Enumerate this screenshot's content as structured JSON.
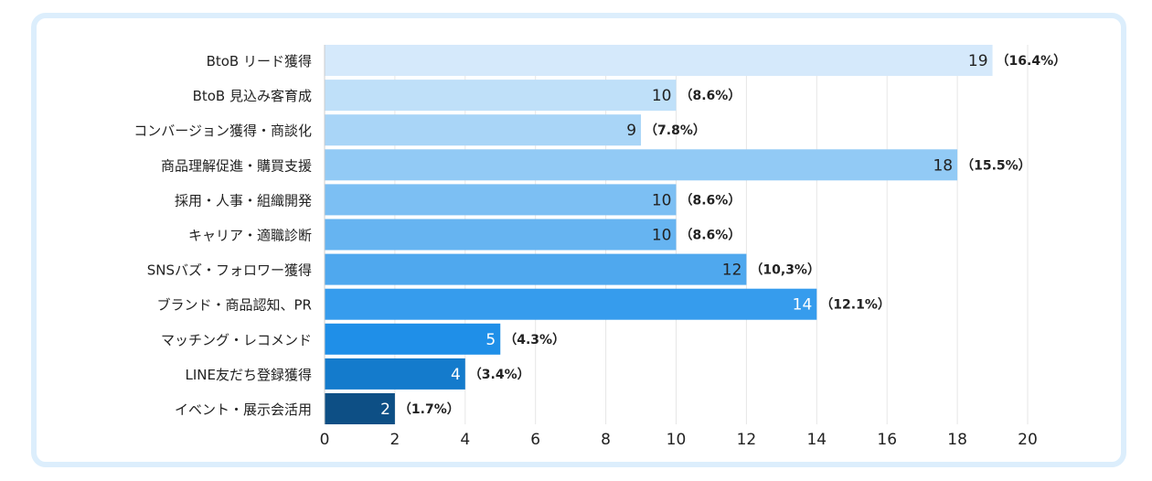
{
  "chart_data": {
    "type": "bar",
    "orientation": "horizontal",
    "categories": [
      "BtoB リード獲得",
      "BtoB 見込み客育成",
      "コンバージョン獲得・商談化",
      "商品理解促進・購買支援",
      "採用・人事・組織開発",
      "キャリア・適職診断",
      "SNSバズ・フォロワー獲得",
      "ブランド・商品認知、PR",
      "マッチング・レコメンド",
      "LINE友だち登録獲得",
      "イベント・展示会活用"
    ],
    "values": [
      19,
      10,
      9,
      18,
      10,
      10,
      12,
      14,
      5,
      4,
      2
    ],
    "value_labels": [
      "19",
      "10",
      "9",
      "18",
      "10",
      "10",
      "12",
      "14",
      "5",
      "4",
      "2"
    ],
    "percent_labels": [
      "（16.4%）",
      "（8.6%）",
      "（7.8%）",
      "（15.5%）",
      "（8.6%）",
      "（8.6%）",
      "（10,3%）",
      "（12.1%）",
      "（4.3%）",
      "（3.4%）",
      "（1.7%）"
    ],
    "bar_colors": [
      "#d5e9fb",
      "#bfe0f9",
      "#a9d5f7",
      "#92caf5",
      "#7cbff3",
      "#66b4f1",
      "#4fa8ee",
      "#369ced",
      "#1f8fe8",
      "#147bcc",
      "#0d4f85"
    ],
    "value_label_colors": [
      "#222222",
      "#222222",
      "#222222",
      "#222222",
      "#222222",
      "#222222",
      "#222222",
      "#ffffff",
      "#ffffff",
      "#ffffff",
      "#ffffff"
    ],
    "xlim": [
      0,
      20
    ],
    "xticks": [
      "0",
      "2",
      "4",
      "6",
      "8",
      "10",
      "12",
      "14",
      "16",
      "18",
      "20"
    ],
    "grid": true,
    "legend": "none"
  },
  "colors": {
    "frame_border": "#dceefc",
    "gridline": "#e6e6e6",
    "text": "#222222"
  }
}
